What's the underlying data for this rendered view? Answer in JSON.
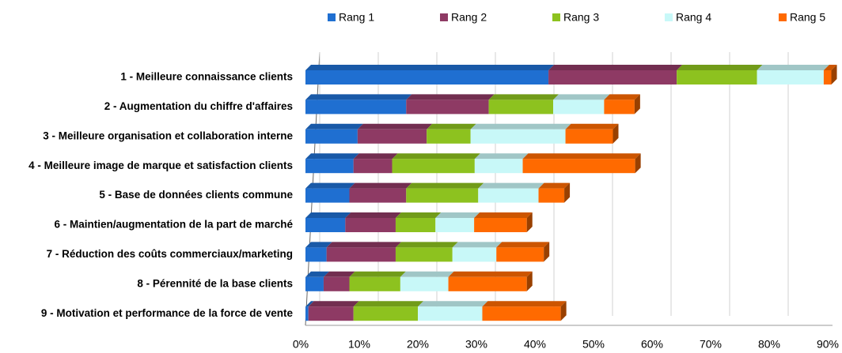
{
  "chart_data": {
    "type": "stacked-barh",
    "categories": [
      "1 - Meilleure connaissance clients",
      "2 - Augmentation du chiffre d'affaires",
      "3 - Meilleure organisation et collaboration interne",
      "4 - Meilleure image de marque et satisfaction clients",
      "5 - Base de données clients commune",
      "6 - Maintien/augmentation de la part de marché",
      "7 - Réduction des coûts commerciaux/marketing",
      "8 - Pérennité de la base clients",
      "9 - Motivation et performance de la force de vente"
    ],
    "series": [
      {
        "name": "Rang 1",
        "color": "#1f6fd1",
        "values": [
          41.5,
          17.2,
          8.9,
          8.2,
          7.5,
          6.8,
          3.6,
          3.1,
          0.5
        ]
      },
      {
        "name": "Rang 2",
        "color": "#8e3a64",
        "values": [
          21.9,
          14.1,
          11.8,
          6.6,
          9.7,
          8.6,
          11.8,
          4.4,
          7.7
        ]
      },
      {
        "name": "Rang 3",
        "color": "#8dc21f",
        "values": [
          13.7,
          11.0,
          7.5,
          14.1,
          12.3,
          6.8,
          9.7,
          8.7,
          11.0
        ]
      },
      {
        "name": "Rang 4",
        "color": "#c8f8f8",
        "values": [
          11.4,
          8.7,
          16.2,
          8.2,
          10.3,
          6.6,
          7.5,
          8.2,
          11.0
        ]
      },
      {
        "name": "Rang 5",
        "color": "#ff6a00",
        "values": [
          1.3,
          5.2,
          8.1,
          19.2,
          4.4,
          9.0,
          8.1,
          13.4,
          13.4
        ]
      }
    ],
    "xlim": [
      0,
      90
    ],
    "xticks": [
      {
        "value": 0,
        "label": "0%"
      },
      {
        "value": 10,
        "label": "10%"
      },
      {
        "value": 20,
        "label": "20%"
      },
      {
        "value": 30,
        "label": "30%"
      },
      {
        "value": 40,
        "label": "40%"
      },
      {
        "value": 50,
        "label": "50%"
      },
      {
        "value": 60,
        "label": "60%"
      },
      {
        "value": 70,
        "label": "70%"
      },
      {
        "value": 80,
        "label": "80%"
      },
      {
        "value": 90,
        "label": "90%"
      }
    ],
    "grid": true,
    "legend": "top"
  }
}
